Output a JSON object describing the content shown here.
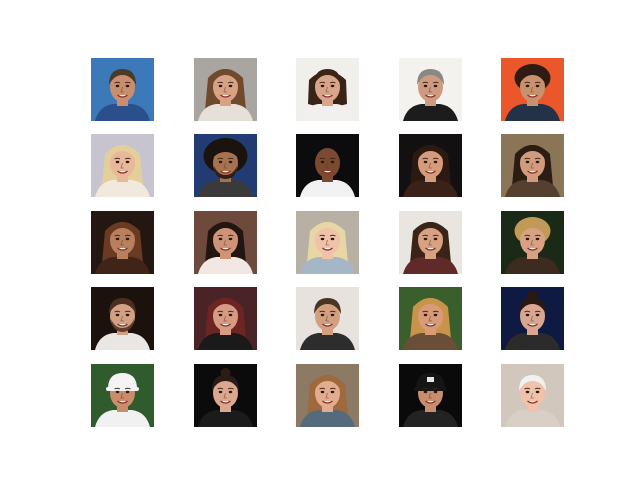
{
  "figure": {
    "rows": 5,
    "cols": 5,
    "background": "#ffffff",
    "faces": [
      {
        "bg": "#3b79b8",
        "skin": "#c98e6e",
        "hair": "#4b3a28",
        "shirt": "#2a4f8a",
        "hairstyle": "short",
        "accessory": "none"
      },
      {
        "bg": "#a9a5a1",
        "skin": "#d7a384",
        "hair": "#6f4a2c",
        "shirt": "#e6e0d8",
        "hairstyle": "long",
        "accessory": "none"
      },
      {
        "bg": "#f1efec",
        "skin": "#d8a58b",
        "hair": "#3a2416",
        "shirt": "#f2f0ee",
        "hairstyle": "bob",
        "accessory": "none"
      },
      {
        "bg": "#f4f2ef",
        "skin": "#cf9b80",
        "hair": "#8a8784",
        "shirt": "#1c1c1c",
        "hairstyle": "short",
        "accessory": "none"
      },
      {
        "bg": "#e9572a",
        "skin": "#c9926e",
        "hair": "#2e1c12",
        "shirt": "#233246",
        "hairstyle": "curly",
        "accessory": "none"
      },
      {
        "bg": "#c8c4cf",
        "skin": "#e8b89b",
        "hair": "#e4cf9a",
        "shirt": "#f1e9dd",
        "hairstyle": "long",
        "accessory": "none"
      },
      {
        "bg": "#223b73",
        "skin": "#a8724f",
        "hair": "#1b130d",
        "shirt": "#3a3a3a",
        "hairstyle": "afro",
        "accessory": "beard"
      },
      {
        "bg": "#0c0c0e",
        "skin": "#7b4a31",
        "hair": "#7b4a31",
        "shirt": "#f2f2f2",
        "hairstyle": "bald",
        "accessory": "none"
      },
      {
        "bg": "#121010",
        "skin": "#d69b7c",
        "hair": "#2c1a10",
        "shirt": "#3a2218",
        "hairstyle": "long",
        "accessory": "none"
      },
      {
        "bg": "#8a7556",
        "skin": "#d19c7e",
        "hair": "#2d1c14",
        "shirt": "#55402f",
        "hairstyle": "long",
        "accessory": "none"
      },
      {
        "bg": "#241711",
        "skin": "#b9805f",
        "hair": "#6a3a23",
        "shirt": "#3f2417",
        "hairstyle": "long",
        "accessory": "none"
      },
      {
        "bg": "#6e4a3d",
        "skin": "#cf9478",
        "hair": "#231611",
        "shirt": "#f2e8e3",
        "hairstyle": "long",
        "accessory": "none"
      },
      {
        "bg": "#b7b0a5",
        "skin": "#efc3a8",
        "hair": "#e8d6a5",
        "shirt": "#a5b7c5",
        "hairstyle": "long",
        "accessory": "none"
      },
      {
        "bg": "#e9e5e1",
        "skin": "#d7a182",
        "hair": "#3a2418",
        "shirt": "#5f2a28",
        "hairstyle": "long",
        "accessory": "none"
      },
      {
        "bg": "#1b2a16",
        "skin": "#d8a183",
        "hair": "#c29a57",
        "shirt": "#3e2b20",
        "hairstyle": "curly",
        "accessory": "none"
      },
      {
        "bg": "#1c120d",
        "skin": "#d3a083",
        "hair": "#4b2f1e",
        "shirt": "#e9e6e3",
        "hairstyle": "short",
        "accessory": "beard"
      },
      {
        "bg": "#4a2326",
        "skin": "#d79b84",
        "hair": "#6e2522",
        "shirt": "#1a1a1a",
        "hairstyle": "long",
        "accessory": "none"
      },
      {
        "bg": "#e7e2dd",
        "skin": "#d2a080",
        "hair": "#4c3423",
        "shirt": "#2d2d2d",
        "hairstyle": "short",
        "accessory": "none"
      },
      {
        "bg": "#3b5f2c",
        "skin": "#d79b77",
        "hair": "#c8944a",
        "shirt": "#6b4e38",
        "hairstyle": "long",
        "accessory": "none"
      },
      {
        "bg": "#0f1a43",
        "skin": "#d9a791",
        "hair": "#2b1810",
        "shirt": "#2b2b2b",
        "hairstyle": "bun",
        "accessory": "none"
      },
      {
        "bg": "#2f5b2d",
        "skin": "#c98d6b",
        "hair": "#3b2a1b",
        "shirt": "#f1f1f1",
        "hairstyle": "cap",
        "accessory": "white-cap"
      },
      {
        "bg": "#0b0b0b",
        "skin": "#dba88f",
        "hair": "#2b1d15",
        "shirt": "#1b1b1b",
        "hairstyle": "bun",
        "accessory": "none"
      },
      {
        "bg": "#8d7a64",
        "skin": "#e2ad8f",
        "hair": "#9e6a3d",
        "shirt": "#556a7a",
        "hairstyle": "long",
        "accessory": "none"
      },
      {
        "bg": "#0a0a0a",
        "skin": "#c88d6c",
        "hair": "#1c1410",
        "shirt": "#232323",
        "hairstyle": "cap",
        "accessory": "dark-cap"
      },
      {
        "bg": "#d1c7bd",
        "skin": "#f0c1ab",
        "hair": "#f1f1ef",
        "shirt": "#d8cfc6",
        "hairstyle": "short",
        "accessory": "none"
      }
    ]
  }
}
